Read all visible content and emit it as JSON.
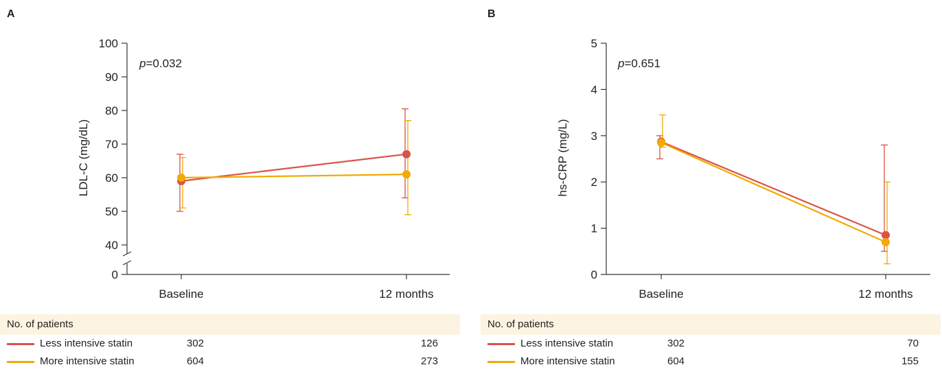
{
  "colors": {
    "less": "#d9534a",
    "more": "#f2a900",
    "axis": "#333333",
    "table_header_bg": "#fdf3e1"
  },
  "panels": [
    {
      "letter": "A",
      "p_italic": "p",
      "p_rest": "=0.032",
      "patients": {
        "header": "No. of patients",
        "less": [
          "302",
          "126"
        ],
        "more": [
          "604",
          "273"
        ]
      }
    },
    {
      "letter": "B",
      "p_italic": "p",
      "p_rest": "=0.651",
      "patients": {
        "header": "No. of patients",
        "less": [
          "302",
          "70"
        ],
        "more": [
          "604",
          "155"
        ]
      }
    }
  ],
  "legend": {
    "less": "Less intensive statin",
    "more": "More intensive statin"
  },
  "chart_data": [
    {
      "type": "line",
      "categories": [
        "Baseline",
        "12 months"
      ],
      "ylabel": "LDL-C (mg/dL)",
      "yticks": [
        "100",
        "90",
        "80",
        "70",
        "60",
        "50",
        "40",
        "0"
      ],
      "ylim": [
        40,
        100
      ],
      "axis_break": true,
      "series": [
        {
          "name": "Less intensive statin",
          "values": [
            59,
            67
          ],
          "err_low": [
            50,
            54
          ],
          "err_high": [
            67,
            80.5
          ]
        },
        {
          "name": "More intensive statin",
          "values": [
            60,
            61
          ],
          "err_low": [
            51,
            49
          ],
          "err_high": [
            66,
            77
          ]
        }
      ]
    },
    {
      "type": "line",
      "categories": [
        "Baseline",
        "12 months"
      ],
      "ylabel": "hs-CRP (mg/L)",
      "yticks": [
        "5",
        "4",
        "3",
        "2",
        "1",
        "0"
      ],
      "ylim": [
        0,
        5
      ],
      "series": [
        {
          "name": "Less intensive statin",
          "values": [
            2.87,
            0.85
          ],
          "err_low": [
            2.5,
            0.5
          ],
          "err_high": [
            3.0,
            2.8
          ]
        },
        {
          "name": "More intensive statin",
          "values": [
            2.85,
            0.7
          ],
          "err_low": [
            2.75,
            0.23
          ],
          "err_high": [
            3.45,
            2.0
          ]
        }
      ]
    }
  ]
}
